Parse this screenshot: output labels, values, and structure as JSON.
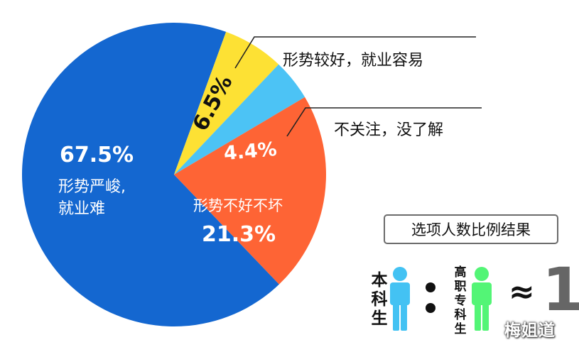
{
  "chart_data": {
    "type": "pie",
    "slices": [
      {
        "value": 67.5,
        "label": "67.5%",
        "desc": "形势严峻,",
        "desc2": "就业难",
        "color": "#1467d0"
      },
      {
        "value": 6.5,
        "label": "6.5%",
        "desc": "形势较好，就业容易",
        "color": "#fde134"
      },
      {
        "value": 4.4,
        "label": "4.4%",
        "desc": "不关注，没了解",
        "color": "#4cc3f5"
      },
      {
        "value": 21.3,
        "label": "21.3%",
        "desc": "形势不好不坏",
        "color": "#fe6435"
      }
    ]
  },
  "legend": {
    "title": "选项人数比例结果",
    "group_a": [
      "本",
      "科",
      "生"
    ],
    "group_b": [
      "高",
      "职",
      "专",
      "科",
      "生"
    ],
    "approx": "≈",
    "ratio": "1",
    "color_a": "#43c2f3",
    "color_b": "#53f576"
  },
  "watermark": "梅姐道"
}
